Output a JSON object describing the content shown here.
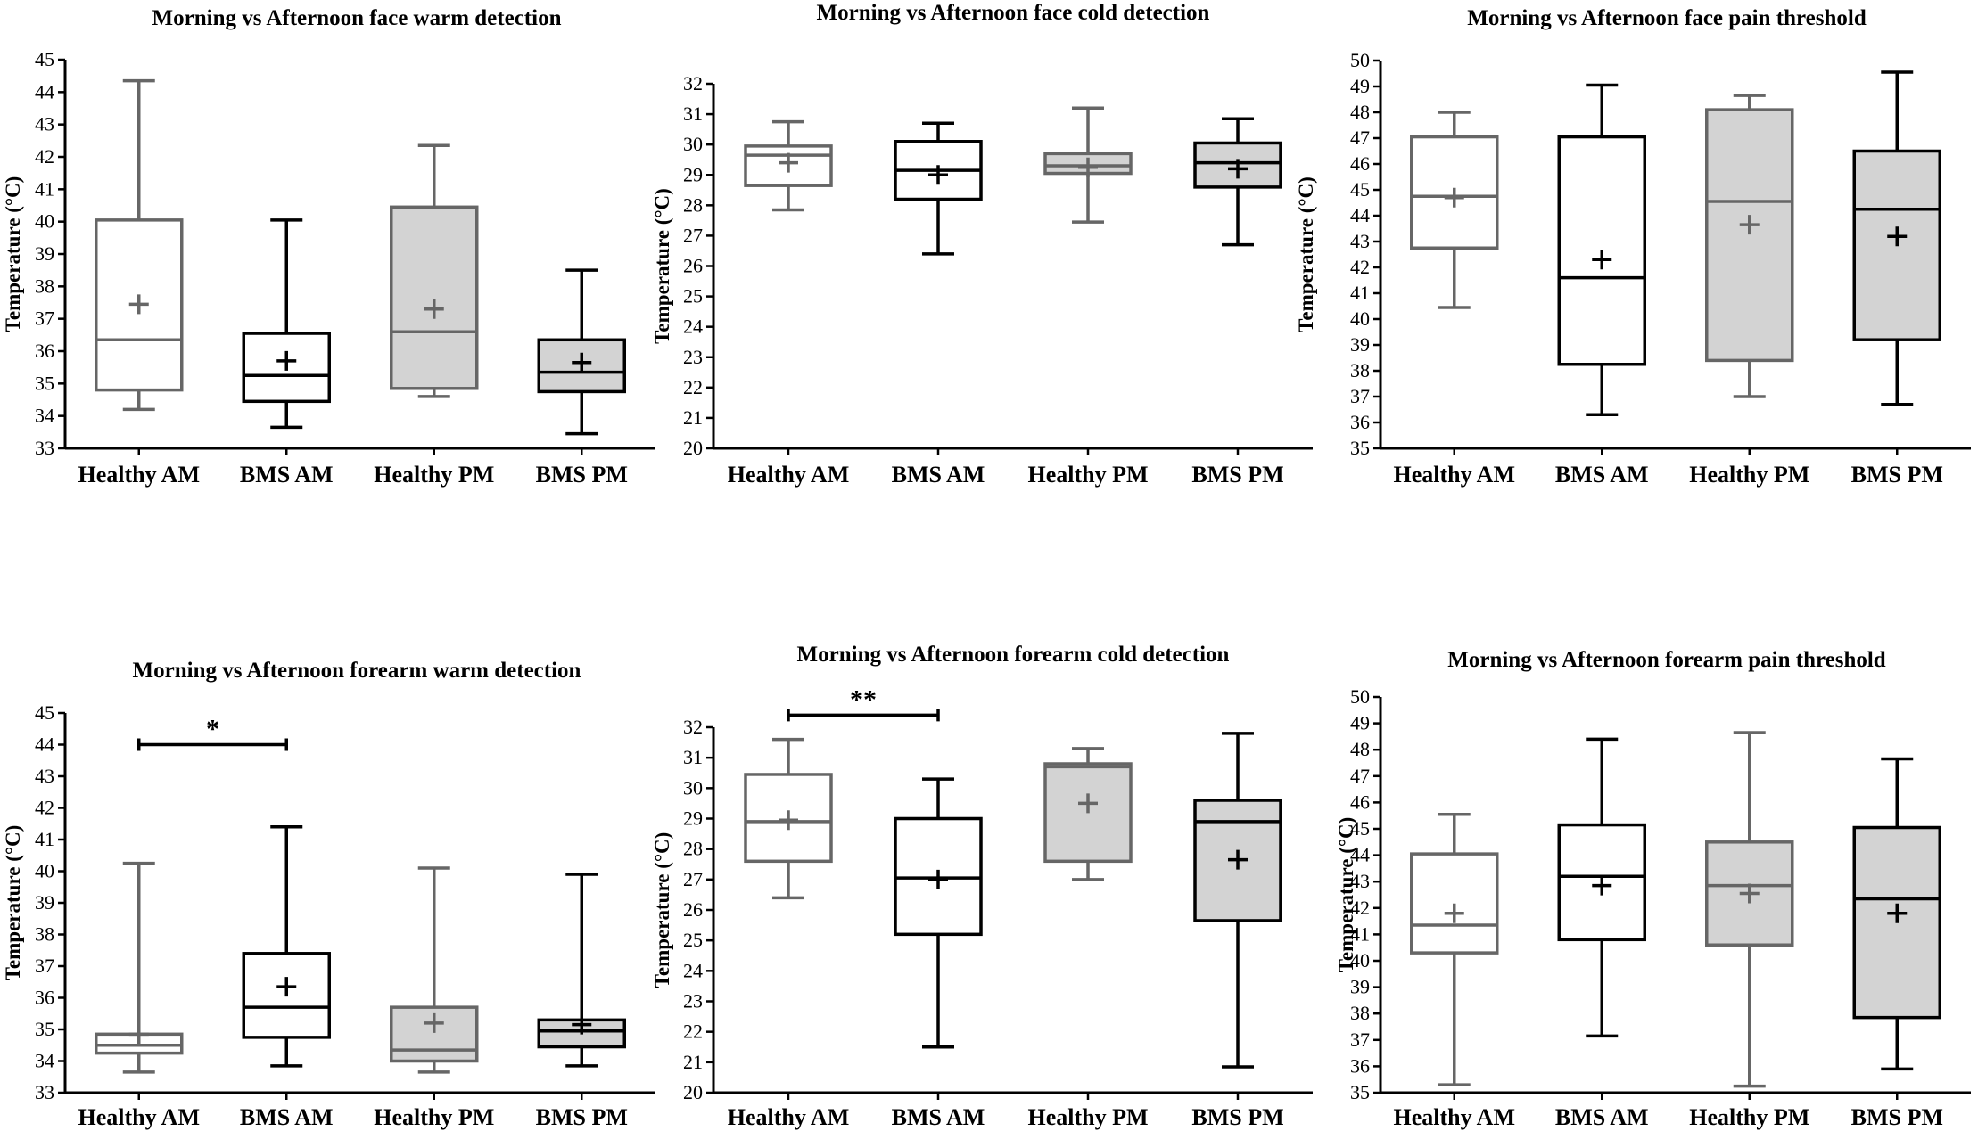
{
  "chart_data": [
    {
      "type": "box",
      "title": "Morning vs Afternoon face warm detection",
      "ylabel": "Temperature (°C)",
      "ylim": [
        33,
        45
      ],
      "ytick_step": 1,
      "categories": [
        "Healthy AM",
        "BMS AM",
        "Healthy PM",
        "BMS PM"
      ],
      "boxes": [
        {
          "min": 34.2,
          "q1": 34.8,
          "median": 36.35,
          "q3": 40.05,
          "max": 44.35,
          "mean": 37.45,
          "color": "#666666",
          "fill": "#ffffff"
        },
        {
          "min": 33.65,
          "q1": 34.45,
          "median": 35.25,
          "q3": 36.55,
          "max": 40.05,
          "mean": 35.7,
          "color": "#000000",
          "fill": "#ffffff"
        },
        {
          "min": 34.6,
          "q1": 34.85,
          "median": 36.6,
          "q3": 40.45,
          "max": 42.35,
          "mean": 37.3,
          "color": "#666666",
          "fill": "#d3d3d3"
        },
        {
          "min": 33.45,
          "q1": 34.75,
          "median": 35.35,
          "q3": 36.35,
          "max": 38.5,
          "mean": 35.65,
          "color": "#000000",
          "fill": "#d3d3d3"
        }
      ],
      "significance": []
    },
    {
      "type": "box",
      "title": "Morning vs Afternoon face cold detection",
      "ylabel": "Temperature (°C)",
      "ylim": [
        20,
        32
      ],
      "ytick_step": 1,
      "categories": [
        "Healthy AM",
        "BMS AM",
        "Healthy PM",
        "BMS PM"
      ],
      "boxes": [
        {
          "min": 27.85,
          "q1": 28.65,
          "median": 29.65,
          "q3": 29.95,
          "max": 30.75,
          "mean": 29.4,
          "color": "#666666",
          "fill": "#ffffff"
        },
        {
          "min": 26.4,
          "q1": 28.2,
          "median": 29.15,
          "q3": 30.1,
          "max": 30.7,
          "mean": 29.0,
          "color": "#000000",
          "fill": "#ffffff"
        },
        {
          "min": 27.45,
          "q1": 29.05,
          "median": 29.3,
          "q3": 29.7,
          "max": 31.2,
          "mean": 29.25,
          "color": "#666666",
          "fill": "#d3d3d3"
        },
        {
          "min": 26.7,
          "q1": 28.6,
          "median": 29.4,
          "q3": 30.05,
          "max": 30.85,
          "mean": 29.2,
          "color": "#000000",
          "fill": "#d3d3d3"
        }
      ],
      "significance": []
    },
    {
      "type": "box",
      "title": "Morning vs Afternoon face pain threshold",
      "ylabel": "Temperature (°C)",
      "ylim": [
        35,
        50
      ],
      "ytick_step": 1,
      "categories": [
        "Healthy AM",
        "BMS AM",
        "Healthy PM",
        "BMS PM"
      ],
      "boxes": [
        {
          "min": 40.45,
          "q1": 42.75,
          "median": 44.75,
          "q3": 47.05,
          "max": 48.0,
          "mean": 44.7,
          "color": "#666666",
          "fill": "#ffffff"
        },
        {
          "min": 36.3,
          "q1": 38.25,
          "median": 41.6,
          "q3": 47.05,
          "max": 49.05,
          "mean": 42.3,
          "color": "#000000",
          "fill": "#ffffff"
        },
        {
          "min": 37.0,
          "q1": 38.4,
          "median": 44.55,
          "q3": 48.1,
          "max": 48.65,
          "mean": 43.65,
          "color": "#666666",
          "fill": "#d3d3d3"
        },
        {
          "min": 36.7,
          "q1": 39.2,
          "median": 44.25,
          "q3": 46.5,
          "max": 49.55,
          "mean": 43.2,
          "color": "#000000",
          "fill": "#d3d3d3"
        }
      ],
      "significance": []
    },
    {
      "type": "box",
      "title": "Morning vs Afternoon forearm warm detection",
      "ylabel": "Temperature (°C)",
      "ylim": [
        33,
        45
      ],
      "ytick_step": 1,
      "categories": [
        "Healthy AM",
        "BMS AM",
        "Healthy PM",
        "BMS PM"
      ],
      "boxes": [
        {
          "min": 33.65,
          "q1": 34.25,
          "median": 34.5,
          "q3": 34.85,
          "max": 40.25,
          "mean": 34.85,
          "color": "#666666",
          "fill": "#ffffff"
        },
        {
          "min": 33.85,
          "q1": 34.75,
          "median": 35.7,
          "q3": 37.4,
          "max": 41.4,
          "mean": 36.35,
          "color": "#000000",
          "fill": "#ffffff"
        },
        {
          "min": 33.65,
          "q1": 34.0,
          "median": 34.35,
          "q3": 35.7,
          "max": 40.1,
          "mean": 35.2,
          "color": "#666666",
          "fill": "#d3d3d3"
        },
        {
          "min": 33.85,
          "q1": 34.45,
          "median": 34.95,
          "q3": 35.3,
          "max": 39.9,
          "mean": 35.15,
          "color": "#000000",
          "fill": "#d3d3d3"
        }
      ],
      "significance": [
        {
          "from": 0,
          "to": 1,
          "y": 44.0,
          "label": "*"
        }
      ]
    },
    {
      "type": "box",
      "title": "Morning vs Afternoon forearm cold detection",
      "ylabel": "Temperature (°C)",
      "ylim": [
        20,
        32
      ],
      "ytick_step": 1,
      "categories": [
        "Healthy AM",
        "BMS AM",
        "Healthy PM",
        "BMS PM"
      ],
      "boxes": [
        {
          "min": 26.4,
          "q1": 27.6,
          "median": 28.9,
          "q3": 30.45,
          "max": 31.6,
          "mean": 28.95,
          "color": "#666666",
          "fill": "#ffffff"
        },
        {
          "min": 21.5,
          "q1": 25.2,
          "median": 27.05,
          "q3": 29.0,
          "max": 30.3,
          "mean": 27.0,
          "color": "#000000",
          "fill": "#ffffff"
        },
        {
          "min": 27.0,
          "q1": 27.6,
          "median": 30.7,
          "q3": 30.8,
          "max": 31.3,
          "mean": 29.5,
          "color": "#666666",
          "fill": "#d3d3d3"
        },
        {
          "min": 20.85,
          "q1": 25.65,
          "median": 28.9,
          "q3": 29.6,
          "max": 31.8,
          "mean": 27.65,
          "color": "#000000",
          "fill": "#d3d3d3"
        }
      ],
      "significance": [
        {
          "from": 0,
          "to": 1,
          "y": 32.4,
          "label": "**"
        }
      ]
    },
    {
      "type": "box",
      "title": "Morning vs Afternoon forearm pain threshold",
      "ylabel": "Temperature (°C)",
      "ylim": [
        35,
        50
      ],
      "ytick_step": 1,
      "categories": [
        "Healthy AM",
        "BMS AM",
        "Healthy PM",
        "BMS PM"
      ],
      "boxes": [
        {
          "min": 35.3,
          "q1": 40.3,
          "median": 41.35,
          "q3": 44.05,
          "max": 45.55,
          "mean": 41.8,
          "color": "#666666",
          "fill": "#ffffff"
        },
        {
          "min": 37.15,
          "q1": 40.8,
          "median": 43.2,
          "q3": 45.15,
          "max": 48.4,
          "mean": 42.85,
          "color": "#000000",
          "fill": "#ffffff"
        },
        {
          "min": 35.25,
          "q1": 40.6,
          "median": 42.85,
          "q3": 44.5,
          "max": 48.65,
          "mean": 42.55,
          "color": "#666666",
          "fill": "#d3d3d3"
        },
        {
          "min": 35.9,
          "q1": 37.85,
          "median": 42.35,
          "q3": 45.05,
          "max": 47.65,
          "mean": 41.8,
          "color": "#000000",
          "fill": "#d3d3d3"
        }
      ],
      "significance": []
    }
  ]
}
